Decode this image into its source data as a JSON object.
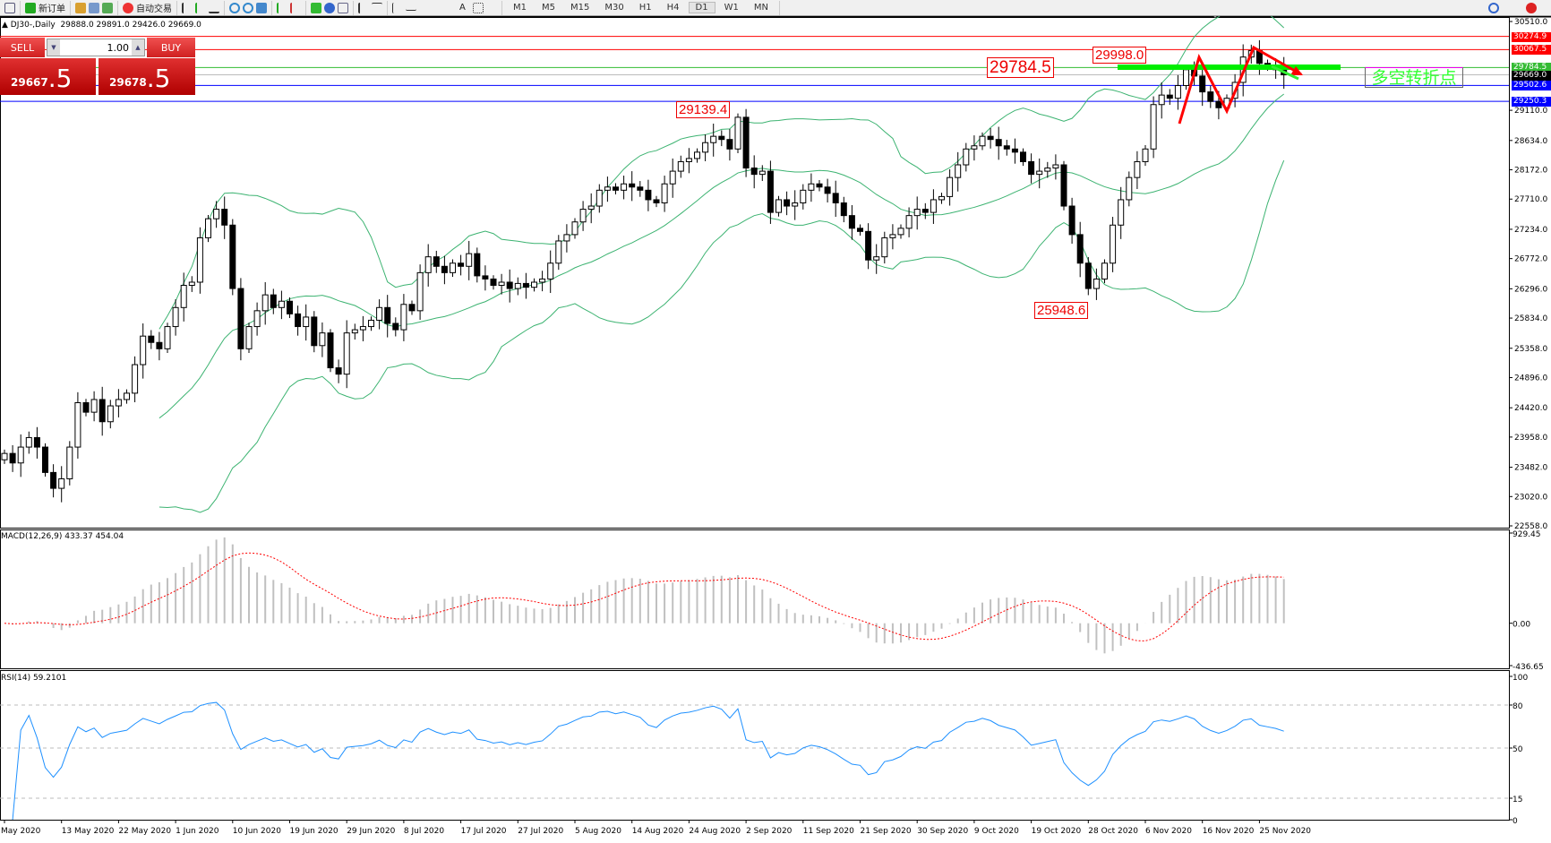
{
  "toolbar": {
    "new_order_label": "新订单",
    "auto_trading_label": "自动交易",
    "timeframes": [
      "M1",
      "M5",
      "M15",
      "M30",
      "H1",
      "H4",
      "D1",
      "W1",
      "MN"
    ],
    "active_timeframe": "D1"
  },
  "chart_header": {
    "symbol_period": "DJ30-,Daily",
    "ohlc": "29888.0 29891.0 29426.0 29669.0"
  },
  "trade_panel": {
    "sell_label": "SELL",
    "buy_label": "BUY",
    "lot": "1.00",
    "sell_price_main": "29667",
    "sell_price_frac": ".5",
    "buy_price_main": "29678",
    "buy_price_frac": ".5"
  },
  "annotations": {
    "label_29784": "29784.5",
    "label_29998": "29998.0",
    "label_29139": "29139.4",
    "label_25948": "25948.6",
    "turning_point_text": "多空转折点"
  },
  "price_levels": [
    {
      "value": "30274.9",
      "color": "#ff0000"
    },
    {
      "value": "30067.5",
      "color": "#ff0000"
    },
    {
      "value": "29784.5",
      "color": "#33bb33"
    },
    {
      "value": "29669.0",
      "color": "#000000"
    },
    {
      "value": "29502.6",
      "color": "#0000ff"
    },
    {
      "value": "29250.3",
      "color": "#0000ff"
    }
  ],
  "indicators": {
    "macd_label": "MACD(12,26,9) 433.37 454.04",
    "rsi_label": "RSI(14) 59.2101"
  },
  "chart_data": [
    {
      "type": "candlestick",
      "title": "DJ30-,Daily",
      "price_ticks": [
        "30510.0",
        "29110.0",
        "28634.0",
        "28172.0",
        "27710.0",
        "27234.0",
        "26772.0",
        "26296.0",
        "25834.0",
        "25358.0",
        "24896.0",
        "24420.0",
        "23958.0",
        "23482.0",
        "23020.0",
        "22558.0"
      ],
      "ylim": [
        22558.0,
        30510.0
      ],
      "date_labels": [
        "May 2020",
        "13 May 2020",
        "22 May 2020",
        "1 Jun 2020",
        "10 Jun 2020",
        "19 Jun 2020",
        "29 Jun 2020",
        "8 Jul 2020",
        "17 Jul 2020",
        "27 Jul 2020",
        "5 Aug 2020",
        "14 Aug 2020",
        "24 Aug 2020",
        "2 Sep 2020",
        "11 Sep 2020",
        "21 Sep 2020",
        "30 Sep 2020",
        "9 Oct 2020",
        "19 Oct 2020",
        "28 Oct 2020",
        "6 Nov 2020",
        "16 Nov 2020",
        "25 Nov 2020"
      ],
      "closes": [
        23700,
        23550,
        23800,
        23950,
        23800,
        23400,
        23150,
        23300,
        23800,
        24500,
        24350,
        24550,
        24200,
        24450,
        24550,
        24650,
        25100,
        25550,
        25450,
        25350,
        25700,
        26000,
        26350,
        26400,
        27100,
        27400,
        27550,
        27300,
        26300,
        25350,
        25700,
        25950,
        26200,
        26000,
        26100,
        25900,
        25700,
        25850,
        25400,
        25600,
        25050,
        24950,
        25600,
        25650,
        25700,
        25800,
        26000,
        25750,
        25650,
        26050,
        25950,
        26550,
        26800,
        26650,
        26550,
        26700,
        26650,
        26850,
        26500,
        26450,
        26350,
        26400,
        26300,
        26380,
        26320,
        26400,
        26450,
        26700,
        27050,
        27150,
        27350,
        27550,
        27600,
        27850,
        27900,
        27850,
        27950,
        27900,
        27850,
        27700,
        27650,
        27950,
        28150,
        28300,
        28350,
        28450,
        28600,
        28700,
        28650,
        28500,
        29000,
        28200,
        28100,
        28150,
        27500,
        27700,
        27600,
        27650,
        27850,
        27950,
        27900,
        27800,
        27650,
        27450,
        27250,
        27200,
        26750,
        26800,
        27100,
        27150,
        27250,
        27450,
        27550,
        27500,
        27700,
        27750,
        28050,
        28250,
        28500,
        28550,
        28700,
        28650,
        28550,
        28500,
        28450,
        28300,
        28100,
        28150,
        28200,
        28250,
        27600,
        27150,
        26700,
        26300,
        26450,
        26700,
        27300,
        27700,
        28050,
        28300,
        28500,
        29200,
        29350,
        29300,
        29500,
        29750,
        29650,
        29400,
        29250,
        29150,
        29300,
        29550,
        29950,
        30050,
        29850,
        29800,
        29750,
        29669
      ],
      "overlays": "Bollinger Bands",
      "colors": {
        "bands": "#3cb371",
        "bull_body": "#ffffff",
        "bear_body": "#000000"
      }
    },
    {
      "type": "bar",
      "title": "MACD(12,26,9)",
      "ticks": [
        "929.45",
        "0.00",
        "-436.65"
      ],
      "ylim": [
        -436.65,
        929.45
      ],
      "colors": {
        "histogram": "#c0c0c0",
        "signal": "#ff0000"
      }
    },
    {
      "type": "line",
      "title": "RSI(14)",
      "ticks": [
        "100",
        "80",
        "50",
        "15",
        "0"
      ],
      "ylim": [
        0,
        100
      ],
      "colors": {
        "line": "#1e90ff"
      }
    }
  ]
}
